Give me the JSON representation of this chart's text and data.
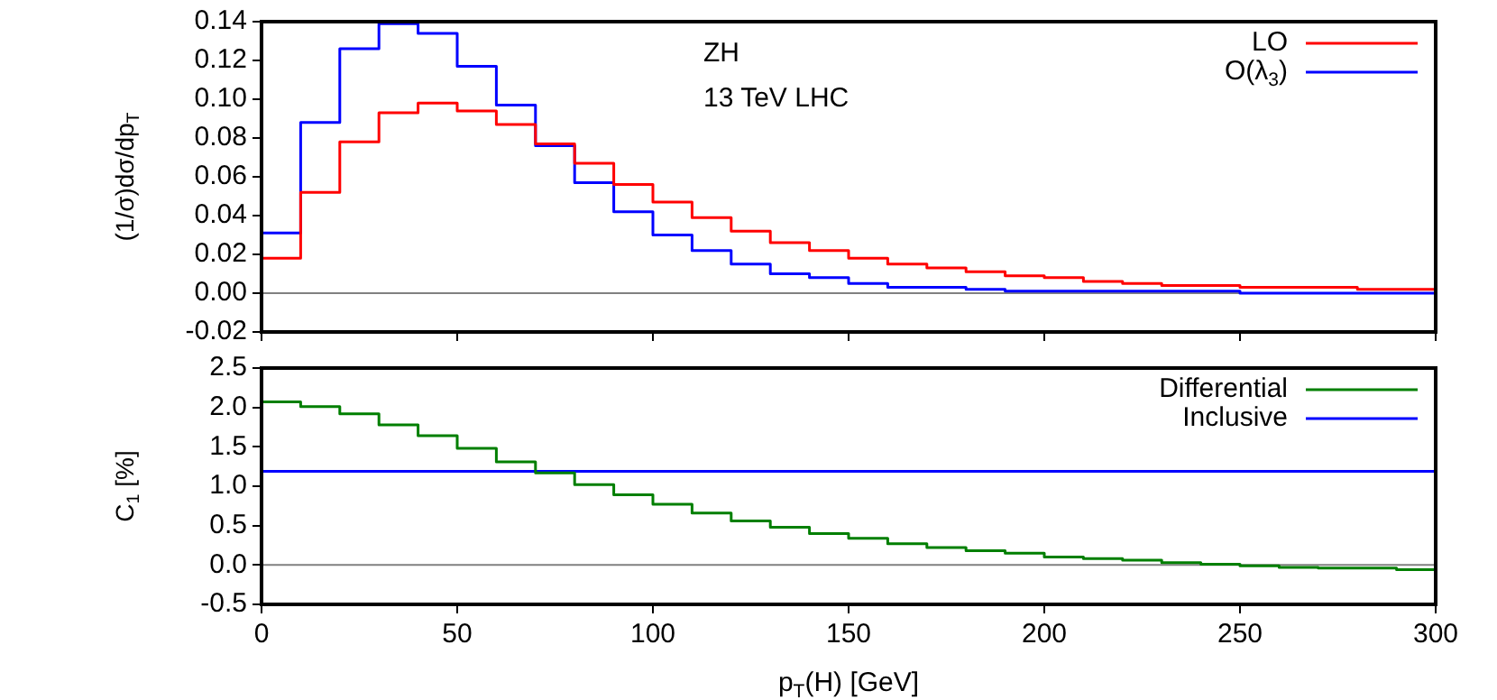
{
  "chart_data": [
    {
      "type": "histogram",
      "ylabel": "(1/σ)dσ/dp$_{T}$",
      "annotations": [
        "ZH",
        "13 TeV LHC"
      ],
      "legend": "top right",
      "grid": false,
      "tick_labels": "y",
      "bins": [
        0,
        10,
        20,
        30,
        40,
        50,
        60,
        70,
        80,
        90,
        100,
        110,
        120,
        130,
        140,
        150,
        160,
        170,
        180,
        190,
        200,
        210,
        220,
        230,
        240,
        250,
        260,
        270,
        280,
        290,
        300
      ],
      "xlim": [
        0,
        300
      ],
      "xticks": [
        {
          "value": 0,
          "label": null
        },
        {
          "value": 50,
          "label": null
        },
        {
          "value": 100,
          "label": null
        },
        {
          "value": 150,
          "label": null
        },
        {
          "value": 200,
          "label": null
        },
        {
          "value": 250,
          "label": null
        },
        {
          "value": 300,
          "label": null
        }
      ],
      "ylim": [
        -0.02,
        0.14
      ],
      "yticks": [
        {
          "value": -0.02,
          "label": "-0.02"
        },
        {
          "value": 0,
          "label": "0.00"
        },
        {
          "value": 0.02,
          "label": "0.02"
        },
        {
          "value": 0.04,
          "label": "0.04"
        },
        {
          "value": 0.06,
          "label": "0.06"
        },
        {
          "value": 0.08,
          "label": "0.08"
        },
        {
          "value": 0.1,
          "label": "0.10"
        },
        {
          "value": 0.12,
          "label": "0.12"
        },
        {
          "value": 0.14,
          "label": "0.14"
        }
      ],
      "ref_lines": [
        {
          "axis": "y",
          "value": 0,
          "color": "#808080"
        }
      ],
      "series": [
        {
          "name": "LO",
          "color": "#ff0000",
          "values": [
            0.018,
            0.052,
            0.078,
            0.093,
            0.098,
            0.094,
            0.087,
            0.077,
            0.067,
            0.056,
            0.047,
            0.039,
            0.032,
            0.026,
            0.022,
            0.018,
            0.015,
            0.013,
            0.011,
            0.009,
            0.008,
            0.006,
            0.005,
            0.004,
            0.004,
            0.003,
            0.003,
            0.003,
            0.002,
            0.002
          ]
        },
        {
          "name": "O(λ$_{3}$)",
          "color": "#0000ff",
          "values": [
            0.031,
            0.088,
            0.126,
            0.139,
            0.134,
            0.117,
            0.097,
            0.076,
            0.057,
            0.042,
            0.03,
            0.022,
            0.015,
            0.01,
            0.008,
            0.005,
            0.003,
            0.003,
            0.002,
            0.001,
            0.001,
            0.001,
            0.001,
            0.001,
            0.001,
            0,
            0,
            0,
            0,
            0
          ]
        }
      ]
    },
    {
      "type": "histogram",
      "xlabel": "p$_{T}$(H) [GeV]",
      "ylabel": "C$_{1}$ [%]",
      "legend": "top right",
      "grid": false,
      "bins": [
        0,
        10,
        20,
        30,
        40,
        50,
        60,
        70,
        80,
        90,
        100,
        110,
        120,
        130,
        140,
        150,
        160,
        170,
        180,
        190,
        200,
        210,
        220,
        230,
        240,
        250,
        260,
        270,
        280,
        290,
        300
      ],
      "xlim": [
        0,
        300
      ],
      "xticks": [
        0,
        50,
        100,
        150,
        200,
        250,
        300
      ],
      "ylim": [
        -0.5,
        2.5
      ],
      "yticks": [
        {
          "value": -0.5,
          "label": "-0.5"
        },
        {
          "value": 0,
          "label": "0.0"
        },
        {
          "value": 0.5,
          "label": "0.5"
        },
        {
          "value": 1,
          "label": "1.0"
        },
        {
          "value": 1.5,
          "label": "1.5"
        },
        {
          "value": 2,
          "label": "2.0"
        },
        {
          "value": 2.5,
          "label": "2.5"
        }
      ],
      "ref_lines": [
        {
          "axis": "y",
          "value": 0,
          "color": "#808080"
        }
      ],
      "series": [
        {
          "name": "Differential",
          "color": "#007f00",
          "values": [
            2.07,
            2.01,
            1.92,
            1.78,
            1.64,
            1.48,
            1.31,
            1.17,
            1.02,
            0.89,
            0.77,
            0.66,
            0.56,
            0.48,
            0.4,
            0.34,
            0.27,
            0.22,
            0.18,
            0.15,
            0.1,
            0.08,
            0.06,
            0.03,
            0.01,
            -0.01,
            -0.03,
            -0.04,
            -0.04,
            -0.06
          ]
        },
        {
          "name": "Inclusive",
          "type": "line",
          "color": "#0000ff",
          "x": [
            0,
            300
          ],
          "values": [
            1.19,
            1.19
          ]
        }
      ]
    }
  ]
}
